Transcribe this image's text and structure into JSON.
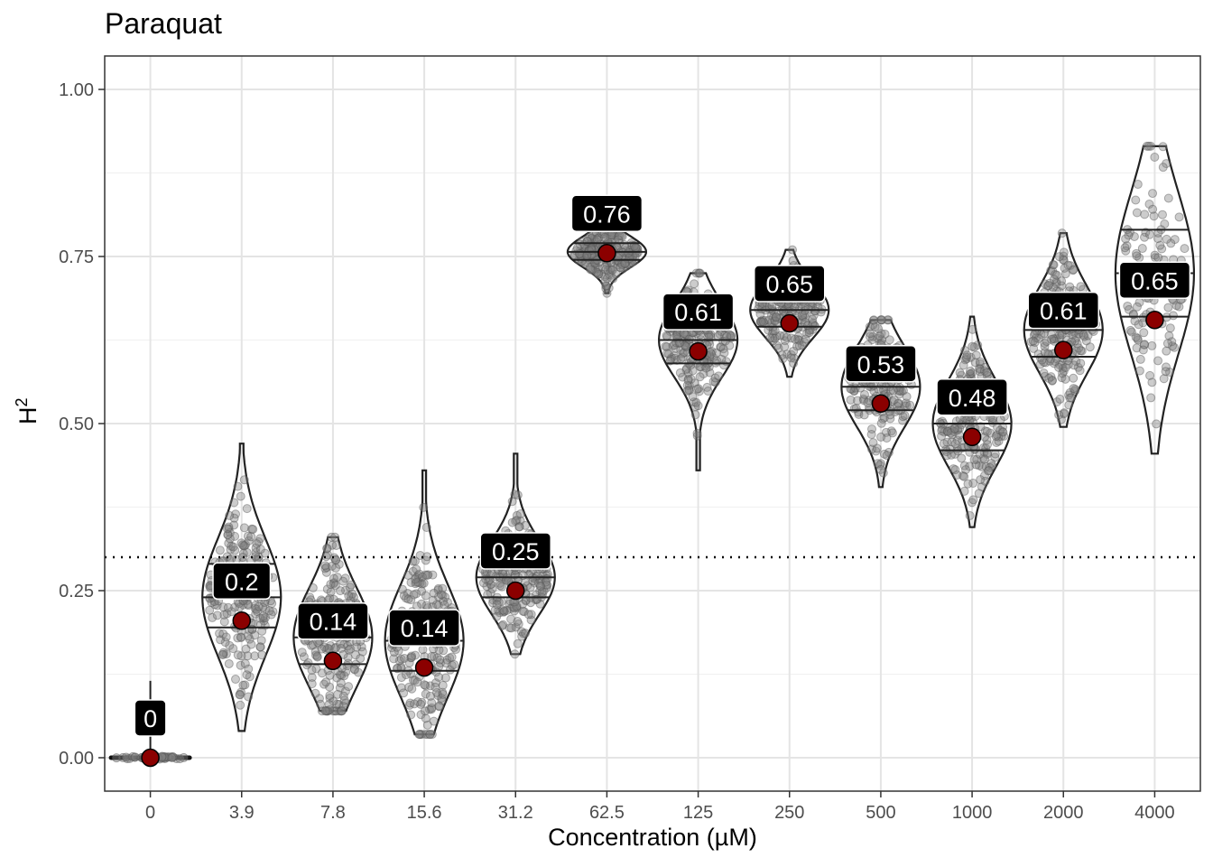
{
  "chart_data": {
    "type": "violin",
    "title": "Paraquat",
    "xlabel": "Concentration (µM)",
    "ylabel": "H",
    "ylabel_superscript": "2",
    "ylim": [
      -0.05,
      1.05
    ],
    "yticks": [
      "0.00",
      "0.25",
      "0.50",
      "0.75",
      "1.00"
    ],
    "ytick_values": [
      0,
      0.25,
      0.5,
      0.75,
      1.0
    ],
    "categories": [
      "0",
      "3.9",
      "7.8",
      "15.6",
      "31.2",
      "62.5",
      "125",
      "250",
      "500",
      "1000",
      "2000",
      "4000"
    ],
    "mean": [
      0.0,
      0.205,
      0.145,
      0.135,
      0.25,
      0.755,
      0.608,
      0.65,
      0.53,
      0.48,
      0.61,
      0.655
    ],
    "labels": [
      "0",
      "0.2",
      "0.14",
      "0.14",
      "0.25",
      "0.76",
      "0.61",
      "0.65",
      "0.53",
      "0.48",
      "0.61",
      "0.65"
    ],
    "min": [
      0.0,
      0.04,
      0.07,
      0.035,
      0.155,
      0.695,
      0.43,
      0.57,
      0.405,
      0.345,
      0.495,
      0.455
    ],
    "max": [
      0.115,
      0.47,
      0.33,
      0.43,
      0.455,
      0.795,
      0.725,
      0.76,
      0.655,
      0.66,
      0.785,
      0.915
    ],
    "quartiles": [
      [
        0.0,
        0.0,
        0.0
      ],
      [
        0.195,
        0.24,
        0.29
      ],
      [
        0.14,
        0.18,
        0.22
      ],
      [
        0.13,
        0.175,
        0.22
      ],
      [
        0.24,
        0.27,
        0.3
      ],
      [
        0.745,
        0.757,
        0.77
      ],
      [
        0.59,
        0.625,
        0.65
      ],
      [
        0.645,
        0.67,
        0.69
      ],
      [
        0.52,
        0.555,
        0.585
      ],
      [
        0.46,
        0.5,
        0.53
      ],
      [
        0.6,
        0.64,
        0.67
      ],
      [
        0.66,
        0.725,
        0.79
      ]
    ],
    "reference_line": 0.3,
    "grid": true,
    "colors": {
      "mean_point": "#8b0000",
      "points": "#808080",
      "label_bg": "#000000",
      "label_text": "#ffffff",
      "reference": "#000000"
    }
  }
}
